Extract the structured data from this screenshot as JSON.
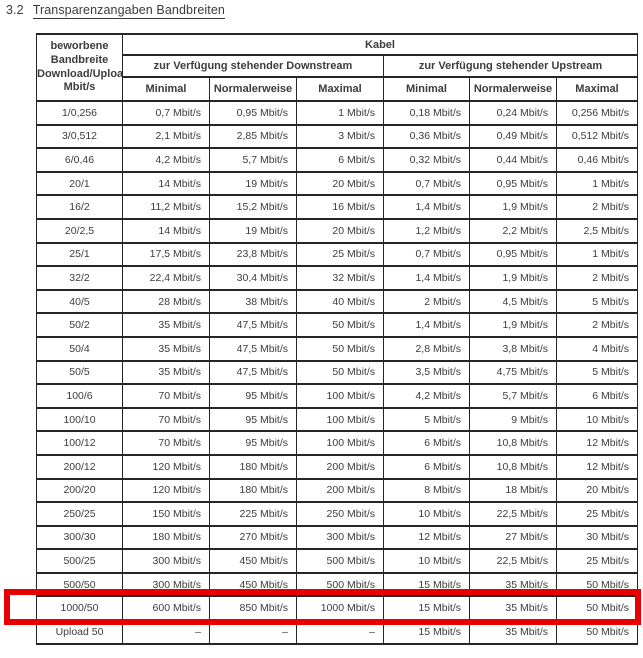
{
  "document": {
    "section_number": "3.2",
    "section_title": "Transparenzangaben Bandbreiten"
  },
  "table": {
    "corner_header": "beworbene\nBandbreite\nDownload/Upload\nMbit/s",
    "group_header": "Kabel",
    "downstream_header": "zur Verfügung stehender Downstream",
    "upstream_header": "zur Verfügung stehender Upstream",
    "sub_headers": [
      "Minimal",
      "Normalerweise",
      "Maximal",
      "Minimal",
      "Normalerweise",
      "Maximal"
    ],
    "rows": [
      [
        "1/0,256",
        "0,7 Mbit/s",
        "0,95 Mbit/s",
        "1 Mbit/s",
        "0,18 Mbit/s",
        "0,24 Mbit/s",
        "0,256 Mbit/s"
      ],
      [
        "3/0,512",
        "2,1 Mbit/s",
        "2,85 Mbit/s",
        "3 Mbit/s",
        "0,36 Mbit/s",
        "0,49 Mbit/s",
        "0,512 Mbit/s"
      ],
      [
        "6/0,46",
        "4,2 Mbit/s",
        "5,7 Mbit/s",
        "6 Mbit/s",
        "0,32 Mbit/s",
        "0,44 Mbit/s",
        "0,46 Mbit/s"
      ],
      [
        "20/1",
        "14 Mbit/s",
        "19 Mbit/s",
        "20 Mbit/s",
        "0,7 Mbit/s",
        "0,95 Mbit/s",
        "1 Mbit/s"
      ],
      [
        "16/2",
        "11,2 Mbit/s",
        "15,2 Mbit/s",
        "16 Mbit/s",
        "1,4 Mbit/s",
        "1,9 Mbit/s",
        "2 Mbit/s"
      ],
      [
        "20/2,5",
        "14 Mbit/s",
        "19 Mbit/s",
        "20 Mbit/s",
        "1,2 Mbit/s",
        "2,2 Mbit/s",
        "2,5 Mbit/s"
      ],
      [
        "25/1",
        "17,5 Mbit/s",
        "23,8 Mbit/s",
        "25 Mbit/s",
        "0,7 Mbit/s",
        "0,95 Mbit/s",
        "1 Mbit/s"
      ],
      [
        "32/2",
        "22,4 Mbit/s",
        "30,4 Mbit/s",
        "32 Mbit/s",
        "1,4 Mbit/s",
        "1,9 Mbit/s",
        "2 Mbit/s"
      ],
      [
        "40/5",
        "28 Mbit/s",
        "38 Mbit/s",
        "40 Mbit/s",
        "2 Mbit/s",
        "4,5 Mbit/s",
        "5 Mbit/s"
      ],
      [
        "50/2",
        "35 Mbit/s",
        "47,5 Mbit/s",
        "50 Mbit/s",
        "1,4 Mbit/s",
        "1,9 Mbit/s",
        "2 Mbit/s"
      ],
      [
        "50/4",
        "35 Mbit/s",
        "47,5 Mbit/s",
        "50 Mbit/s",
        "2,8 Mbit/s",
        "3,8 Mbit/s",
        "4 Mbit/s"
      ],
      [
        "50/5",
        "35 Mbit/s",
        "47,5 Mbit/s",
        "50 Mbit/s",
        "3,5 Mbit/s",
        "4,75 Mbit/s",
        "5 Mbit/s"
      ],
      [
        "100/6",
        "70 Mbit/s",
        "95 Mbit/s",
        "100 Mbit/s",
        "4,2 Mbit/s",
        "5,7 Mbit/s",
        "6 Mbit/s"
      ],
      [
        "100/10",
        "70 Mbit/s",
        "95 Mbit/s",
        "100 Mbit/s",
        "5 Mbit/s",
        "9 Mbit/s",
        "10 Mbit/s"
      ],
      [
        "100/12",
        "70 Mbit/s",
        "95 Mbit/s",
        "100 Mbit/s",
        "6 Mbit/s",
        "10,8 Mbit/s",
        "12 Mbit/s"
      ],
      [
        "200/12",
        "120 Mbit/s",
        "180 Mbit/s",
        "200 Mbit/s",
        "6 Mbit/s",
        "10,8 Mbit/s",
        "12 Mbit/s"
      ],
      [
        "200/20",
        "120 Mbit/s",
        "180 Mbit/s",
        "200 Mbit/s",
        "8 Mbit/s",
        "18 Mbit/s",
        "20 Mbit/s"
      ],
      [
        "250/25",
        "150 Mbit/s",
        "225 Mbit/s",
        "250 Mbit/s",
        "10 Mbit/s",
        "22,5 Mbit/s",
        "25 Mbit/s"
      ],
      [
        "300/30",
        "180 Mbit/s",
        "270 Mbit/s",
        "300 Mbit/s",
        "12 Mbit/s",
        "27 Mbit/s",
        "30 Mbit/s"
      ],
      [
        "500/25",
        "300 Mbit/s",
        "450 Mbit/s",
        "500 Mbit/s",
        "10 Mbit/s",
        "22,5 Mbit/s",
        "25 Mbit/s"
      ],
      [
        "500/50",
        "300 Mbit/s",
        "450 Mbit/s",
        "500 Mbit/s",
        "15 Mbit/s",
        "35 Mbit/s",
        "50 Mbit/s"
      ],
      [
        "1000/50",
        "600 Mbit/s",
        "850 Mbit/s",
        "1000 Mbit/s",
        "15 Mbit/s",
        "35 Mbit/s",
        "50 Mbit/s"
      ],
      [
        "Upload 50",
        "–",
        "–",
        "–",
        "15 Mbit/s",
        "35 Mbit/s",
        "50 Mbit/s"
      ]
    ],
    "highlighted_row": "1000/50",
    "highlight_color": "#e60000"
  }
}
